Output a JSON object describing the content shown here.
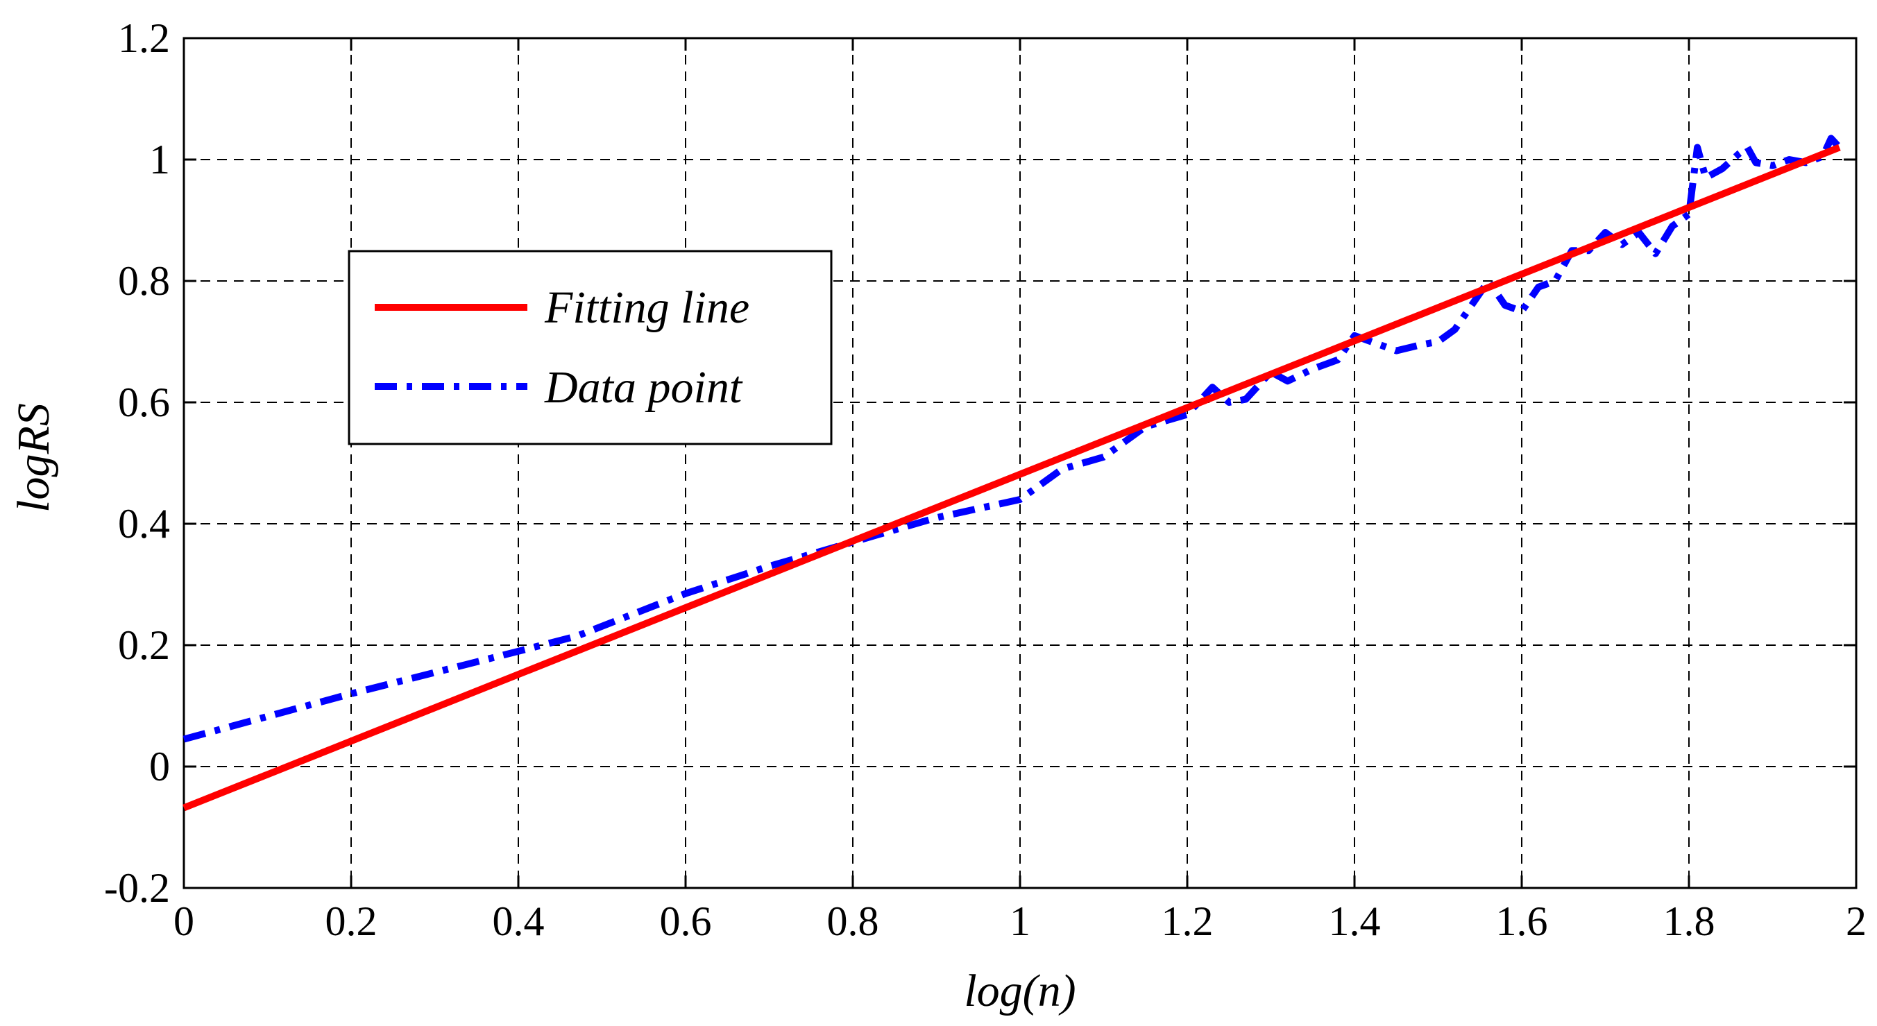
{
  "chart_data": {
    "type": "line",
    "title": "",
    "xlabel": "log(n)",
    "ylabel": "logRS",
    "xlim": [
      0,
      2
    ],
    "ylim": [
      -0.2,
      1.2
    ],
    "xticks": [
      0,
      0.2,
      0.4,
      0.6,
      0.8,
      1,
      1.2,
      1.4,
      1.6,
      1.8,
      2
    ],
    "xtick_labels": [
      "0",
      "0.2",
      "0.4",
      "0.6",
      "0.8",
      "1",
      "1.2",
      "1.4",
      "1.6",
      "1.8",
      "2"
    ],
    "yticks": [
      -0.2,
      0,
      0.2,
      0.4,
      0.6,
      0.8,
      1,
      1.2
    ],
    "ytick_labels": [
      "-0.2",
      "0",
      "0.2",
      "0.4",
      "0.6",
      "0.8",
      "1",
      "1.2"
    ],
    "grid": true,
    "legend_position": "upper-left",
    "series": [
      {
        "name": "Fitting line",
        "color": "#ff0000",
        "style": "solid",
        "x": [
          0,
          1.98
        ],
        "y": [
          -0.068,
          1.02
        ]
      },
      {
        "name": "Data point",
        "color": "#0000ff",
        "style": "dashdot",
        "x": [
          0,
          0.2,
          0.4,
          0.47,
          0.6,
          0.7,
          0.8,
          0.9,
          1.0,
          1.05,
          1.1,
          1.15,
          1.2,
          1.23,
          1.25,
          1.27,
          1.3,
          1.32,
          1.35,
          1.38,
          1.4,
          1.42,
          1.45,
          1.48,
          1.5,
          1.52,
          1.55,
          1.56,
          1.58,
          1.6,
          1.62,
          1.64,
          1.66,
          1.68,
          1.7,
          1.72,
          1.74,
          1.76,
          1.78,
          1.8,
          1.81,
          1.82,
          1.84,
          1.86,
          1.87,
          1.88,
          1.9,
          1.92,
          1.94,
          1.96,
          1.97,
          1.98
        ],
        "y": [
          0.045,
          0.12,
          0.19,
          0.215,
          0.285,
          0.33,
          0.37,
          0.41,
          0.44,
          0.49,
          0.51,
          0.56,
          0.58,
          0.625,
          0.6,
          0.605,
          0.65,
          0.635,
          0.655,
          0.67,
          0.71,
          0.7,
          0.685,
          0.695,
          0.7,
          0.72,
          0.78,
          0.8,
          0.76,
          0.75,
          0.79,
          0.8,
          0.85,
          0.85,
          0.88,
          0.86,
          0.88,
          0.845,
          0.89,
          0.91,
          1.02,
          0.97,
          0.985,
          1.01,
          1.02,
          0.995,
          0.99,
          1.0,
          0.995,
          1.005,
          1.035,
          1.02
        ]
      }
    ]
  }
}
